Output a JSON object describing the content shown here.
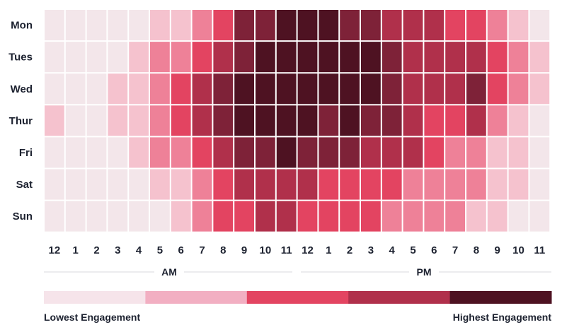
{
  "chart_data": {
    "type": "heatmap",
    "rows": [
      "Mon",
      "Tues",
      "Wed",
      "Thur",
      "Fri",
      "Sat",
      "Sun"
    ],
    "columns": [
      "12",
      "1",
      "2",
      "3",
      "4",
      "5",
      "6",
      "7",
      "8",
      "9",
      "10",
      "11",
      "12",
      "1",
      "2",
      "3",
      "4",
      "5",
      "6",
      "7",
      "8",
      "9",
      "10",
      "11"
    ],
    "periods": [
      "AM",
      "PM"
    ],
    "scale": {
      "levels": 6,
      "colors": [
        "#f3e6ea",
        "#f5c2ce",
        "#ee8198",
        "#e34461",
        "#b0304b",
        "#7e2238",
        "#4e1222"
      ]
    },
    "values": [
      [
        0,
        0,
        0,
        0,
        0,
        1,
        1,
        2,
        3,
        5,
        5,
        6,
        6,
        6,
        5,
        5,
        4,
        4,
        4,
        3,
        3,
        2,
        1,
        0
      ],
      [
        0,
        0,
        0,
        0,
        1,
        2,
        2,
        3,
        4,
        5,
        6,
        6,
        6,
        6,
        6,
        6,
        5,
        4,
        4,
        4,
        4,
        3,
        2,
        1
      ],
      [
        0,
        0,
        0,
        1,
        1,
        2,
        3,
        4,
        5,
        6,
        6,
        6,
        6,
        6,
        6,
        6,
        5,
        4,
        4,
        4,
        5,
        3,
        2,
        1
      ],
      [
        1,
        0,
        0,
        1,
        1,
        2,
        3,
        4,
        5,
        6,
        6,
        6,
        6,
        5,
        6,
        5,
        5,
        4,
        3,
        3,
        4,
        2,
        1,
        0
      ],
      [
        0,
        0,
        0,
        0,
        1,
        2,
        2,
        3,
        4,
        5,
        5,
        6,
        5,
        5,
        5,
        4,
        4,
        4,
        3,
        2,
        2,
        1,
        1,
        0
      ],
      [
        0,
        0,
        0,
        0,
        0,
        1,
        1,
        2,
        3,
        4,
        4,
        4,
        4,
        3,
        3,
        3,
        3,
        2,
        2,
        2,
        2,
        1,
        1,
        0
      ],
      [
        0,
        0,
        0,
        0,
        0,
        0,
        1,
        2,
        3,
        3,
        4,
        4,
        3,
        3,
        3,
        3,
        2,
        2,
        2,
        2,
        1,
        1,
        0,
        0
      ]
    ],
    "legend": {
      "colors": [
        "#f6e4ea",
        "#f2afc2",
        "#e34461",
        "#b0304b",
        "#4e1222"
      ],
      "low_label": "Lowest Engagement",
      "high_label": "Highest Engagement"
    }
  }
}
